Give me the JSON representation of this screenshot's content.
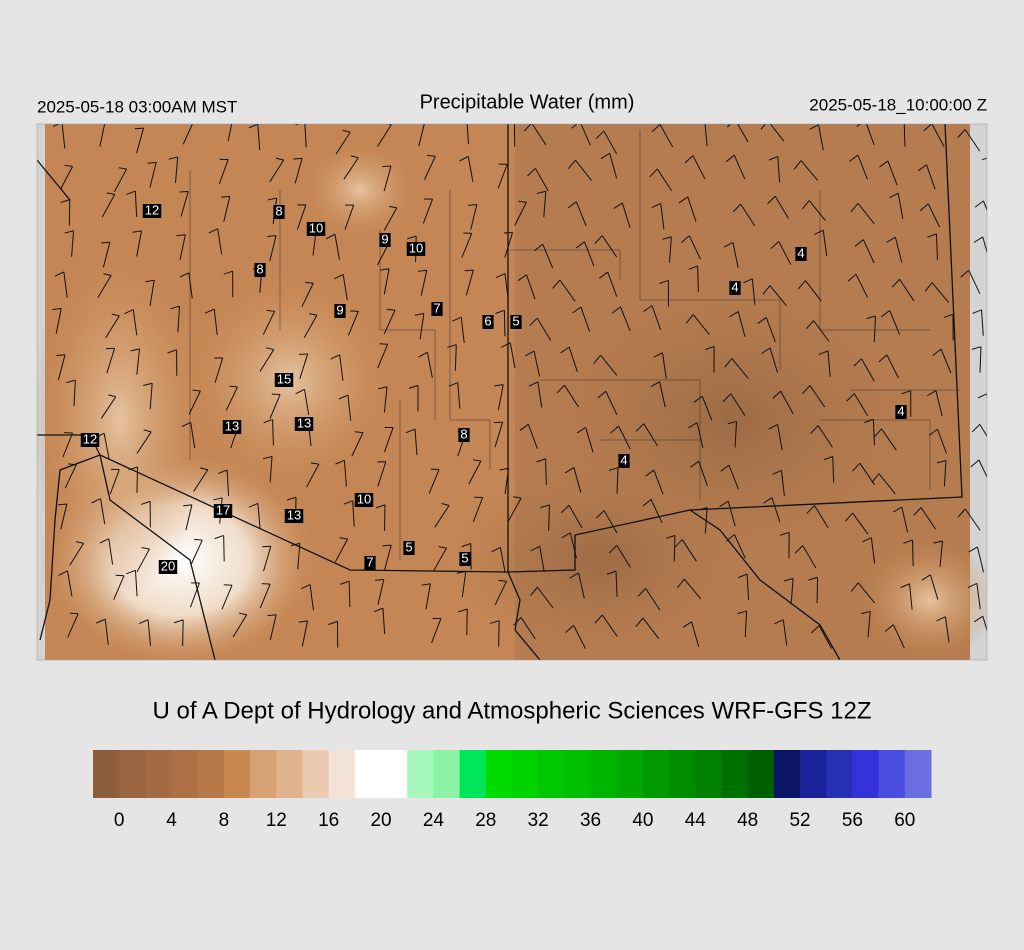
{
  "header": {
    "valid_local": "2025-05-18 03:00AM MST",
    "title": "Precipitable Water (mm)",
    "valid_utc": "2025-05-18_10:00:00 Z"
  },
  "stations": [
    "12",
    "8",
    "10",
    "9",
    "10",
    "8",
    "9",
    "7",
    "6",
    "5",
    "4",
    "4",
    "4",
    "15",
    "13",
    "13",
    "8",
    "12",
    "4",
    "17",
    "13",
    "10",
    "5",
    "5",
    "7",
    "20"
  ],
  "credit": "U of A Dept of Hydrology and Atmospheric Sciences WRF-GFS 12Z",
  "colorbar": {
    "colors": [
      "#8c5d3a",
      "#986540",
      "#a36b43",
      "#ad7145",
      "#b77847",
      "#c9884f",
      "#d6a273",
      "#e0b48f",
      "#eacbb0",
      "#f2e3d6",
      "#ffffff",
      "#ffffff",
      "#a6f7bc",
      "#8cf2a4",
      "#00e65a",
      "#00dc00",
      "#00d200",
      "#00c800",
      "#00be00",
      "#00b400",
      "#00a800",
      "#009a00",
      "#008c00",
      "#008000",
      "#007000",
      "#006000",
      "#0c1466",
      "#1a2299",
      "#2630b3",
      "#3333d9",
      "#4a4ee0",
      "#6a6ee0"
    ],
    "clim": [
      -2,
      62
    ],
    "ticks": [
      0,
      4,
      8,
      12,
      16,
      20,
      24,
      28,
      32,
      36,
      40,
      44,
      48,
      52,
      56,
      60
    ]
  }
}
